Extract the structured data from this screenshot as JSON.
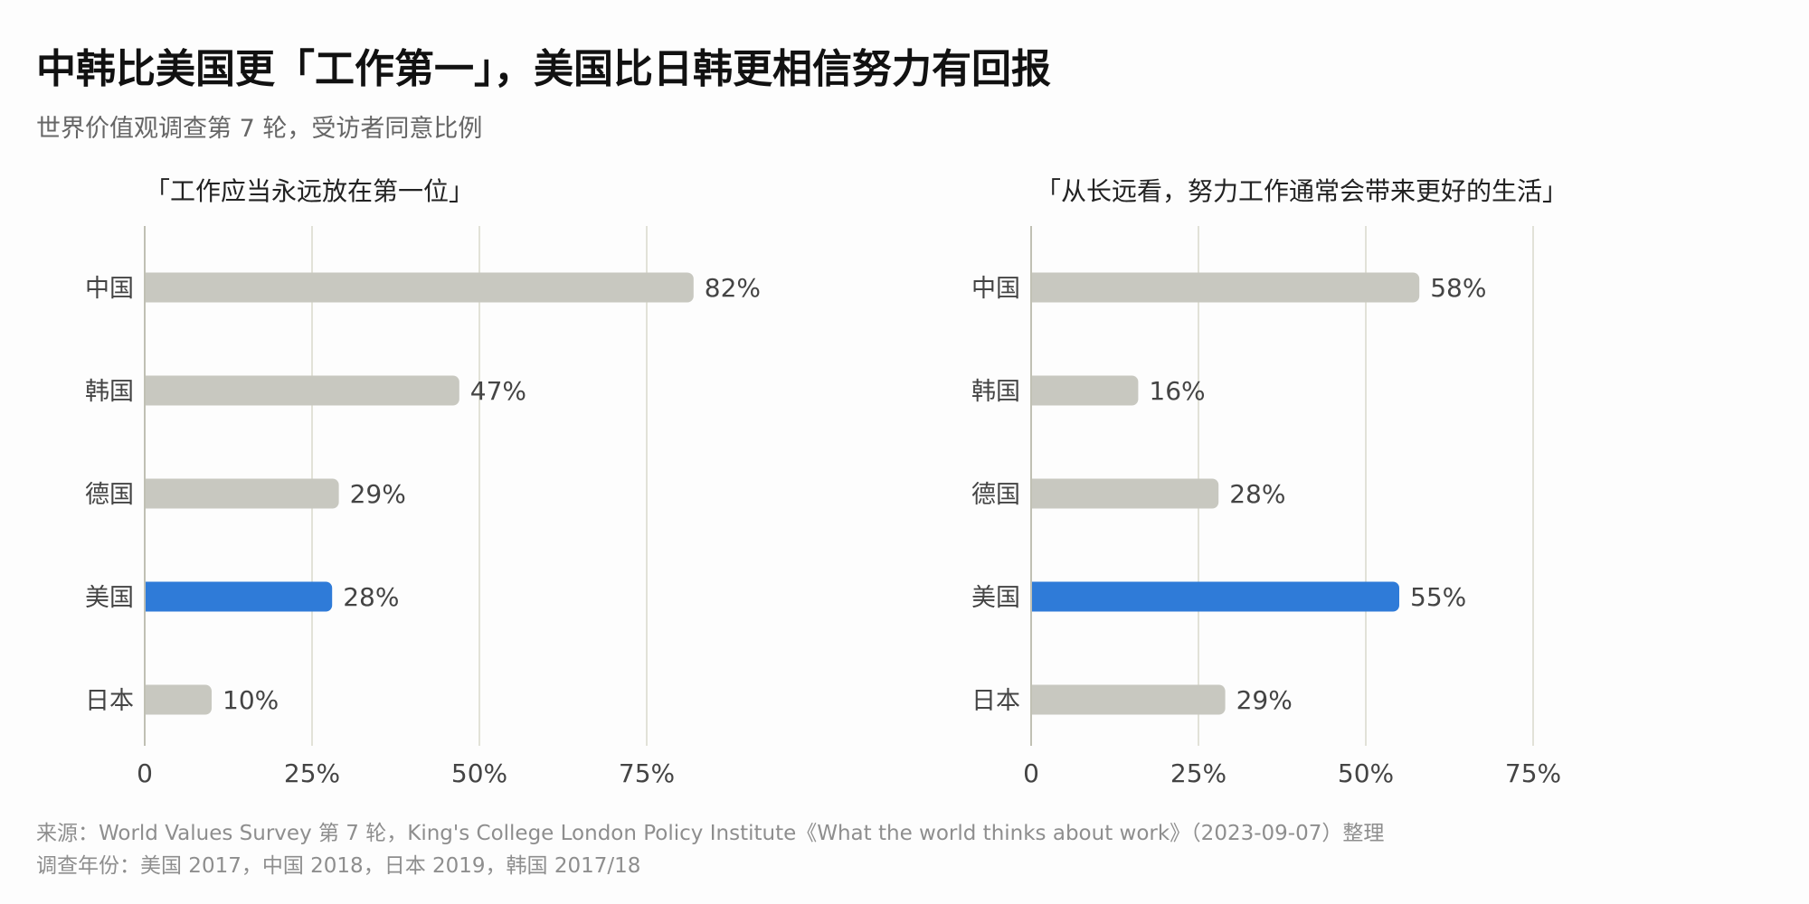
{
  "header": {
    "title": "中韩比美国更「工作第一」，美国比日韩更相信努力有回报",
    "subtitle": "世界价值观调查第 7 轮，受访者同意比例"
  },
  "footer": {
    "source": "来源：World Values Survey 第 7 轮，King's College London Policy Institute《What the world thinks about work》（2023-09-07）整理",
    "years": "调查年份：美国 2017，中国 2018，日本 2019，韩国 2017/18"
  },
  "colors": {
    "bar_default": "#c8c8c0",
    "bar_highlight": "#2f7bd8",
    "grid": "#e2e2d8",
    "axis": "#c0c0b4",
    "label": "#444444"
  },
  "chart_data": [
    {
      "type": "bar",
      "orientation": "horizontal",
      "title": "「工作应当永远放在第一位」",
      "categories": [
        "中国",
        "韩国",
        "德国",
        "美国",
        "日本"
      ],
      "values": [
        82,
        47,
        29,
        28,
        10
      ],
      "value_labels": [
        "82%",
        "47%",
        "29%",
        "28%",
        "10%"
      ],
      "highlight": "美国",
      "xlim": [
        0,
        100
      ],
      "ticks": [
        0,
        25,
        50,
        75
      ],
      "tick_labels": [
        "0",
        "25%",
        "50%",
        "75%"
      ],
      "grid": true
    },
    {
      "type": "bar",
      "orientation": "horizontal",
      "title": "「从长远看，努力工作通常会带来更好的生活」",
      "categories": [
        "中国",
        "韩国",
        "德国",
        "美国",
        "日本"
      ],
      "values": [
        58,
        16,
        28,
        55,
        29
      ],
      "value_labels": [
        "58%",
        "16%",
        "28%",
        "55%",
        "29%"
      ],
      "highlight": "美国",
      "xlim": [
        0,
        100
      ],
      "ticks": [
        0,
        25,
        50,
        75
      ],
      "tick_labels": [
        "0",
        "25%",
        "50%",
        "75%"
      ],
      "grid": true
    }
  ]
}
